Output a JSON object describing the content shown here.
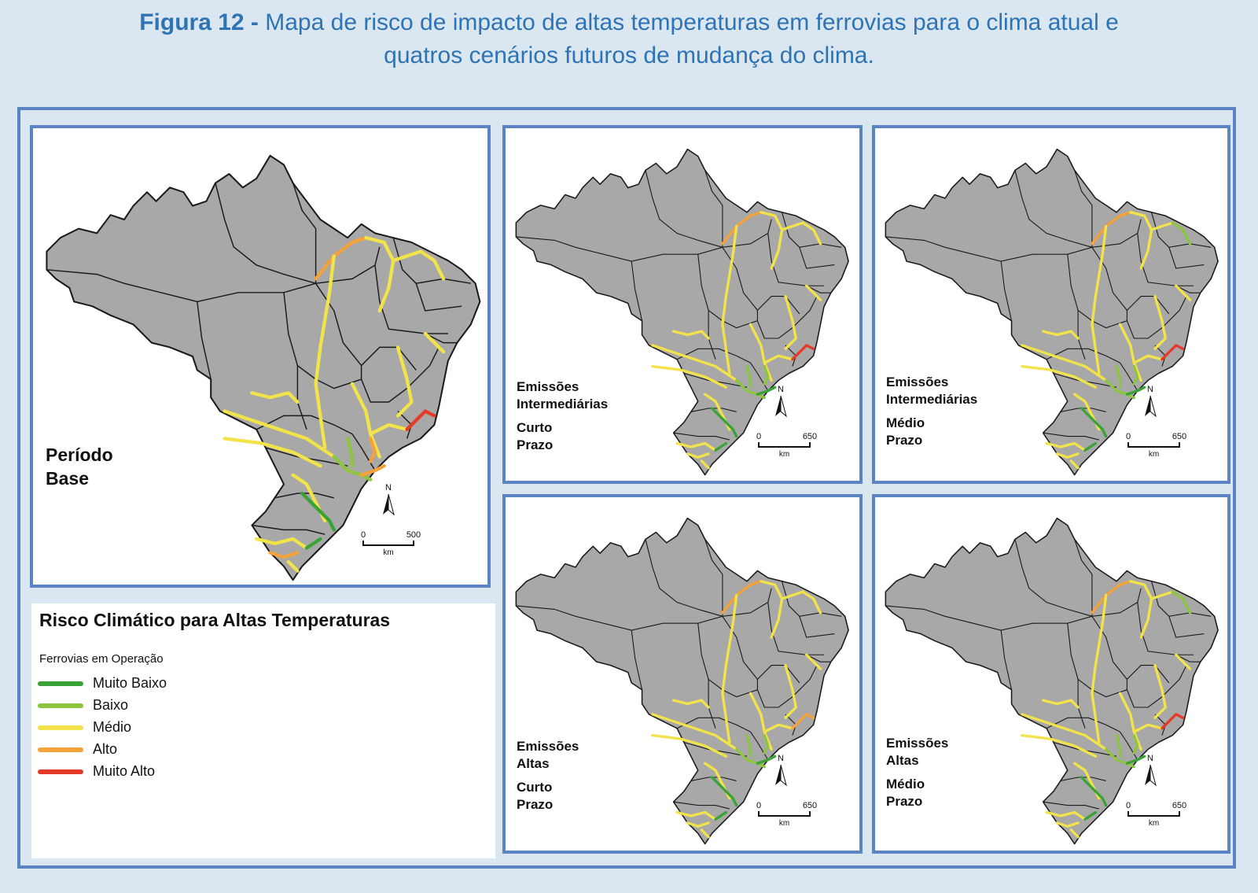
{
  "title": {
    "prefix": "Figura 12 -",
    "line1": "Mapa de risco de impacto de altas temperaturas em ferrovias para o clima atual e",
    "line2": "quatros cenários futuros de mudança do clima."
  },
  "panels": [
    {
      "label_lines": [
        "Período",
        "Base"
      ],
      "scale_min": "0",
      "scale_max": "500",
      "scale_unit": "km",
      "north": "N"
    },
    {
      "label_lines": [
        "Emissões",
        "Intermediárias",
        "Curto",
        "Prazo"
      ],
      "scale_min": "0",
      "scale_max": "650",
      "scale_unit": "km",
      "north": "N"
    },
    {
      "label_lines": [
        "Emissões",
        "Intermediárias",
        "Médio",
        "Prazo"
      ],
      "scale_min": "0",
      "scale_max": "650",
      "scale_unit": "km",
      "north": "N"
    },
    {
      "label_lines": [
        "Emissões",
        "Altas",
        "Curto",
        "Prazo"
      ],
      "scale_min": "0",
      "scale_max": "650",
      "scale_unit": "km",
      "north": "N"
    },
    {
      "label_lines": [
        "Emissões",
        "Altas",
        "Médio",
        "Prazo"
      ],
      "scale_min": "0",
      "scale_max": "650",
      "scale_unit": "km",
      "north": "N"
    }
  ],
  "legend": {
    "title": "Risco Climático para Altas Temperaturas",
    "subtitle": "Ferrovias em Operação",
    "items": [
      {
        "label": "Muito Baixo",
        "color": "#3aa338"
      },
      {
        "label": "Baixo",
        "color": "#8cc63f"
      },
      {
        "label": "Médio",
        "color": "#f2e34a"
      },
      {
        "label": "Alto",
        "color": "#f4a23a"
      },
      {
        "label": "Muito Alto",
        "color": "#e53a2a"
      }
    ]
  },
  "colors": {
    "title_text": "#2e74b5",
    "frame_border": "#5b84c4",
    "background": "#dae6f0",
    "map_fill": "#a8a8a8",
    "map_border": "#1a1a1a"
  }
}
